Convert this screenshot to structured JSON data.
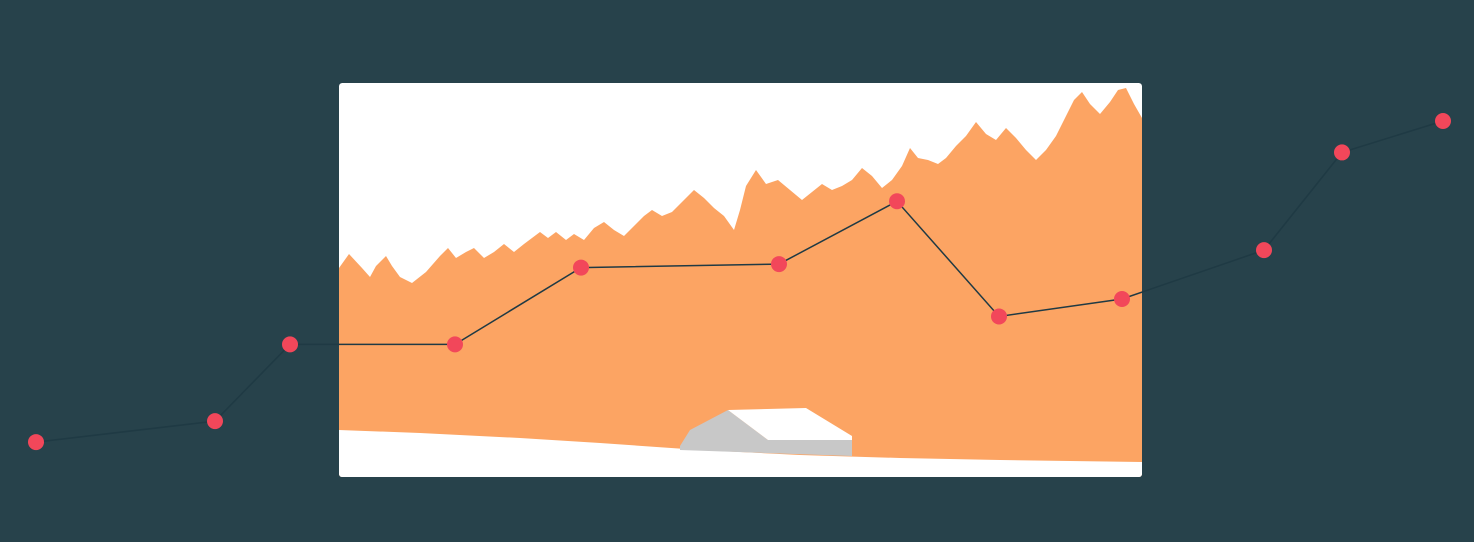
{
  "colors": {
    "background": "#27424b",
    "card": "#ffffff",
    "forest": "#fca463",
    "snow": "#ffffff",
    "tent_shadow": "#c8c8c8",
    "tent_light": "#ffffff",
    "line": "#1f3a44",
    "point": "#f2475a"
  },
  "icons": {
    "scene": "forest-landscape-illustration",
    "tent": "tent-icon"
  },
  "elevation_profile": {
    "count": 12,
    "values": [
      0.08,
      0.14,
      0.36,
      0.36,
      0.58,
      0.59,
      0.77,
      0.44,
      0.49,
      0.63,
      0.91,
      1.0
    ]
  }
}
